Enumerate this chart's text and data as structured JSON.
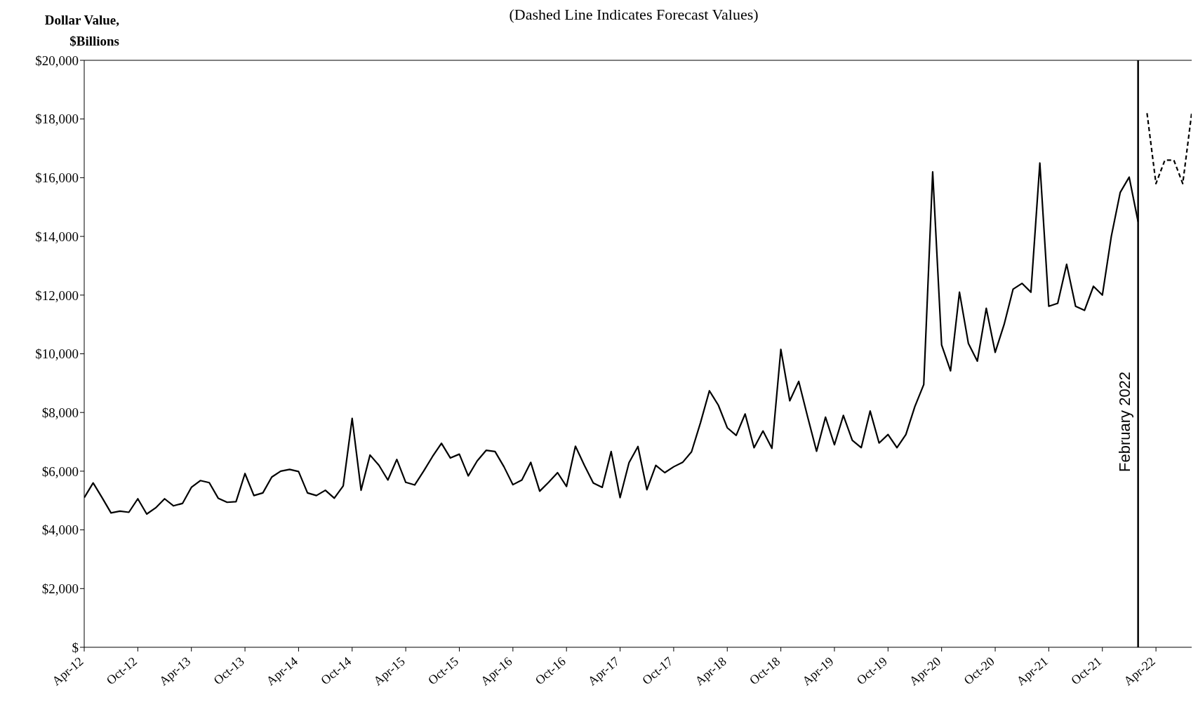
{
  "chart_data": {
    "type": "line",
    "title": "(Dashed Line Indicates Forecast Values)",
    "ylabel": "Dollar Value, $Billions",
    "x": [
      "2012-04",
      "2012-05",
      "2012-06",
      "2012-07",
      "2012-08",
      "2012-09",
      "2012-10",
      "2012-11",
      "2012-12",
      "2013-01",
      "2013-02",
      "2013-03",
      "2013-04",
      "2013-05",
      "2013-06",
      "2013-07",
      "2013-08",
      "2013-09",
      "2013-10",
      "2013-11",
      "2013-12",
      "2014-01",
      "2014-02",
      "2014-03",
      "2014-04",
      "2014-05",
      "2014-06",
      "2014-07",
      "2014-08",
      "2014-09",
      "2014-10",
      "2014-11",
      "2014-12",
      "2015-01",
      "2015-02",
      "2015-03",
      "2015-04",
      "2015-05",
      "2015-06",
      "2015-07",
      "2015-08",
      "2015-09",
      "2015-10",
      "2015-11",
      "2015-12",
      "2016-01",
      "2016-02",
      "2016-03",
      "2016-04",
      "2016-05",
      "2016-06",
      "2016-07",
      "2016-08",
      "2016-09",
      "2016-10",
      "2016-11",
      "2016-12",
      "2017-01",
      "2017-02",
      "2017-03",
      "2017-04",
      "2017-05",
      "2017-06",
      "2017-07",
      "2017-08",
      "2017-09",
      "2017-10",
      "2017-11",
      "2017-12",
      "2018-01",
      "2018-02",
      "2018-03",
      "2018-04",
      "2018-05",
      "2018-06",
      "2018-07",
      "2018-08",
      "2018-09",
      "2018-10",
      "2018-11",
      "2018-12",
      "2019-01",
      "2019-02",
      "2019-03",
      "2019-04",
      "2019-05",
      "2019-06",
      "2019-07",
      "2019-08",
      "2019-09",
      "2019-10",
      "2019-11",
      "2019-12",
      "2020-01",
      "2020-02",
      "2020-03",
      "2020-04",
      "2020-05",
      "2020-06",
      "2020-07",
      "2020-08",
      "2020-09",
      "2020-10",
      "2020-11",
      "2020-12",
      "2021-01",
      "2021-02",
      "2021-03",
      "2021-04",
      "2021-05",
      "2021-06",
      "2021-07",
      "2021-08",
      "2021-09",
      "2021-10",
      "2021-11",
      "2021-12",
      "2022-01",
      "2022-02"
    ],
    "series": [
      {
        "color": "#000000",
        "line_style": "solid",
        "values": [
          5100,
          5600,
          5100,
          4580,
          4640,
          4600,
          5060,
          4540,
          4750,
          5060,
          4820,
          4900,
          5450,
          5680,
          5610,
          5080,
          4940,
          4960,
          5920,
          5170,
          5260,
          5800,
          6000,
          6060,
          5990,
          5260,
          5170,
          5350,
          5080,
          5500,
          7800,
          5350,
          6550,
          6200,
          5700,
          6400,
          5620,
          5530,
          6000,
          6500,
          6950,
          6450,
          6580,
          5840,
          6350,
          6710,
          6670,
          6150,
          5540,
          5700,
          6300,
          5320,
          5620,
          5950,
          5480,
          6850,
          6200,
          5600,
          5450,
          6670,
          5100,
          6290,
          6840,
          5370,
          6200,
          5950,
          6150,
          6300,
          6660,
          7650,
          8740,
          8250,
          7480,
          7220,
          7950,
          6800,
          7370,
          6780,
          10150,
          8400,
          9060,
          7850,
          6680,
          7840,
          6900,
          7900,
          7050,
          6800,
          8050,
          6960,
          7250,
          6800,
          7250,
          8200,
          8950,
          16200,
          10300,
          9420,
          12100,
          10350,
          9750,
          11550,
          10050,
          11000,
          12200,
          12400,
          12100,
          16500,
          11620,
          11720,
          13050,
          11620,
          11480,
          12300,
          12000,
          14000,
          15500,
          16020,
          14500
        ]
      },
      {
        "color": "#000000",
        "line_style": "dashed",
        "x": [
          "2022-03",
          "2022-04",
          "2022-05",
          "2022-06",
          "2022-07",
          "2022-08"
        ],
        "values": [
          18200,
          15800,
          16600,
          16600,
          15800,
          18200
        ]
      }
    ],
    "xlim": [
      "2012-04",
      "2022-08"
    ],
    "xticks": [
      {
        "value": "2012-04",
        "label": "Apr-12"
      },
      {
        "value": "2012-10",
        "label": "Oct-12"
      },
      {
        "value": "2013-04",
        "label": "Apr-13"
      },
      {
        "value": "2013-10",
        "label": "Oct-13"
      },
      {
        "value": "2014-04",
        "label": "Apr-14"
      },
      {
        "value": "2014-10",
        "label": "Oct-14"
      },
      {
        "value": "2015-04",
        "label": "Apr-15"
      },
      {
        "value": "2015-10",
        "label": "Oct-15"
      },
      {
        "value": "2016-04",
        "label": "Apr-16"
      },
      {
        "value": "2016-10",
        "label": "Oct-16"
      },
      {
        "value": "2017-04",
        "label": "Apr-17"
      },
      {
        "value": "2017-10",
        "label": "Oct-17"
      },
      {
        "value": "2018-04",
        "label": "Apr-18"
      },
      {
        "value": "2018-10",
        "label": "Oct-18"
      },
      {
        "value": "2019-04",
        "label": "Apr-19"
      },
      {
        "value": "2019-10",
        "label": "Oct-19"
      },
      {
        "value": "2020-04",
        "label": "Apr-20"
      },
      {
        "value": "2020-10",
        "label": "Oct-20"
      },
      {
        "value": "2021-04",
        "label": "Apr-21"
      },
      {
        "value": "2021-10",
        "label": "Oct-21"
      },
      {
        "value": "2022-04",
        "label": "Apr-22"
      }
    ],
    "ylim": [
      0,
      20000
    ],
    "yticks": [
      {
        "value": 0,
        "label": "$"
      },
      {
        "value": 2000,
        "label": "$2,000"
      },
      {
        "value": 4000,
        "label": "$4,000"
      },
      {
        "value": 6000,
        "label": "$6,000"
      },
      {
        "value": 8000,
        "label": "$8,000"
      },
      {
        "value": 10000,
        "label": "$10,000"
      },
      {
        "value": 12000,
        "label": "$12,000"
      },
      {
        "value": 14000,
        "label": "$14,000"
      },
      {
        "value": 16000,
        "label": "$16,000"
      },
      {
        "value": 18000,
        "label": "$18,000"
      },
      {
        "value": 20000,
        "label": "$20,000"
      }
    ],
    "ref_lines": [
      {
        "axis": "x",
        "value": "2022-02",
        "label": "February 2022",
        "color": "#000000"
      }
    ],
    "grid": false,
    "legend": false,
    "marker": "none"
  }
}
